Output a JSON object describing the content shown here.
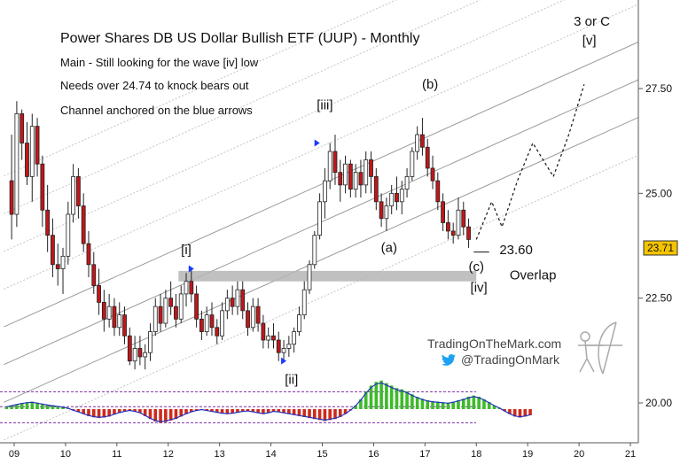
{
  "chart_data": {
    "type": "candlestick",
    "title": "Power Shares DB US Dollar Bullish ETF (UUP) - Monthly",
    "notes": [
      "Main - Still looking for the wave [iv] low",
      "Needs over 24.74 to knock bears out",
      "Channel anchored on the blue arrows"
    ],
    "last_price": "23.71",
    "y_ticks": [
      "27.50",
      "25.00",
      "22.50",
      "20.00"
    ],
    "y_tick_values": [
      27.5,
      25.0,
      22.5,
      20.0
    ],
    "x_ticks": [
      "09",
      "10",
      "11",
      "12",
      "13",
      "14",
      "15",
      "16",
      "17",
      "18",
      "19",
      "20",
      "21"
    ],
    "x_tick_values": [
      9,
      10,
      11,
      12,
      13,
      14,
      15,
      16,
      17,
      18,
      19,
      20,
      21
    ],
    "xlim": [
      8.8,
      21.2
    ],
    "ylim": [
      19.0,
      29.6
    ],
    "candles": [
      {
        "t": 8.95,
        "o": 25.3,
        "h": 26.4,
        "l": 23.9,
        "c": 24.5
      },
      {
        "t": 9.05,
        "o": 24.5,
        "h": 27.2,
        "l": 24.2,
        "c": 26.9
      },
      {
        "t": 9.15,
        "o": 26.9,
        "h": 27.0,
        "l": 25.8,
        "c": 26.2
      },
      {
        "t": 9.25,
        "o": 26.2,
        "h": 26.7,
        "l": 25.2,
        "c": 25.4
      },
      {
        "t": 9.35,
        "o": 25.4,
        "h": 26.9,
        "l": 24.8,
        "c": 26.6
      },
      {
        "t": 9.45,
        "o": 26.6,
        "h": 26.8,
        "l": 25.4,
        "c": 25.7
      },
      {
        "t": 9.55,
        "o": 25.7,
        "h": 25.9,
        "l": 24.2,
        "c": 24.6
      },
      {
        "t": 9.65,
        "o": 24.6,
        "h": 25.2,
        "l": 23.6,
        "c": 24.0
      },
      {
        "t": 9.75,
        "o": 24.0,
        "h": 24.4,
        "l": 23.0,
        "c": 23.3
      },
      {
        "t": 9.85,
        "o": 23.3,
        "h": 23.8,
        "l": 22.8,
        "c": 23.2
      },
      {
        "t": 9.95,
        "o": 23.2,
        "h": 23.7,
        "l": 22.6,
        "c": 23.5
      },
      {
        "t": 10.05,
        "o": 23.5,
        "h": 24.8,
        "l": 23.3,
        "c": 24.5
      },
      {
        "t": 10.15,
        "o": 24.5,
        "h": 25.7,
        "l": 24.3,
        "c": 25.4
      },
      {
        "t": 10.25,
        "o": 25.4,
        "h": 25.6,
        "l": 24.4,
        "c": 24.7
      },
      {
        "t": 10.35,
        "o": 24.7,
        "h": 25.0,
        "l": 23.6,
        "c": 23.8
      },
      {
        "t": 10.45,
        "o": 23.8,
        "h": 24.1,
        "l": 23.0,
        "c": 23.3
      },
      {
        "t": 10.55,
        "o": 23.3,
        "h": 23.6,
        "l": 22.6,
        "c": 22.8
      },
      {
        "t": 10.65,
        "o": 22.8,
        "h": 23.2,
        "l": 22.1,
        "c": 22.4
      },
      {
        "t": 10.75,
        "o": 22.4,
        "h": 22.7,
        "l": 21.7,
        "c": 22.0
      },
      {
        "t": 10.85,
        "o": 22.0,
        "h": 22.6,
        "l": 21.8,
        "c": 22.3
      },
      {
        "t": 10.95,
        "o": 22.3,
        "h": 22.5,
        "l": 21.6,
        "c": 21.8
      },
      {
        "t": 11.05,
        "o": 21.8,
        "h": 22.4,
        "l": 21.6,
        "c": 22.1
      },
      {
        "t": 11.15,
        "o": 22.1,
        "h": 22.3,
        "l": 21.4,
        "c": 21.6
      },
      {
        "t": 11.25,
        "o": 21.6,
        "h": 21.8,
        "l": 20.9,
        "c": 21.0
      },
      {
        "t": 11.35,
        "o": 21.0,
        "h": 21.6,
        "l": 20.8,
        "c": 21.3
      },
      {
        "t": 11.45,
        "o": 21.3,
        "h": 21.6,
        "l": 20.9,
        "c": 21.1
      },
      {
        "t": 11.55,
        "o": 21.1,
        "h": 21.4,
        "l": 20.8,
        "c": 21.2
      },
      {
        "t": 11.65,
        "o": 21.2,
        "h": 21.9,
        "l": 21.0,
        "c": 21.7
      },
      {
        "t": 11.75,
        "o": 21.7,
        "h": 22.5,
        "l": 21.6,
        "c": 22.3
      },
      {
        "t": 11.85,
        "o": 22.3,
        "h": 22.6,
        "l": 21.7,
        "c": 21.9
      },
      {
        "t": 11.95,
        "o": 21.9,
        "h": 22.7,
        "l": 21.8,
        "c": 22.5
      },
      {
        "t": 12.05,
        "o": 22.5,
        "h": 22.9,
        "l": 22.1,
        "c": 22.3
      },
      {
        "t": 12.15,
        "o": 22.3,
        "h": 22.6,
        "l": 21.8,
        "c": 22.0
      },
      {
        "t": 12.25,
        "o": 22.0,
        "h": 22.8,
        "l": 21.9,
        "c": 22.6
      },
      {
        "t": 12.35,
        "o": 22.6,
        "h": 23.1,
        "l": 22.3,
        "c": 22.9
      },
      {
        "t": 12.45,
        "o": 22.9,
        "h": 23.2,
        "l": 22.4,
        "c": 22.6
      },
      {
        "t": 12.55,
        "o": 22.6,
        "h": 22.8,
        "l": 21.8,
        "c": 22.0
      },
      {
        "t": 12.65,
        "o": 22.0,
        "h": 22.2,
        "l": 21.5,
        "c": 21.7
      },
      {
        "t": 12.75,
        "o": 21.7,
        "h": 22.3,
        "l": 21.6,
        "c": 22.1
      },
      {
        "t": 12.85,
        "o": 22.1,
        "h": 22.4,
        "l": 21.6,
        "c": 21.8
      },
      {
        "t": 12.95,
        "o": 21.8,
        "h": 22.0,
        "l": 21.4,
        "c": 21.6
      },
      {
        "t": 13.05,
        "o": 21.6,
        "h": 22.4,
        "l": 21.5,
        "c": 22.2
      },
      {
        "t": 13.15,
        "o": 22.2,
        "h": 22.7,
        "l": 22.0,
        "c": 22.5
      },
      {
        "t": 13.25,
        "o": 22.5,
        "h": 22.8,
        "l": 22.1,
        "c": 22.3
      },
      {
        "t": 13.35,
        "o": 22.3,
        "h": 22.9,
        "l": 22.1,
        "c": 22.7
      },
      {
        "t": 13.45,
        "o": 22.7,
        "h": 22.9,
        "l": 22.0,
        "c": 22.2
      },
      {
        "t": 13.55,
        "o": 22.2,
        "h": 22.4,
        "l": 21.6,
        "c": 21.8
      },
      {
        "t": 13.65,
        "o": 21.8,
        "h": 22.5,
        "l": 21.7,
        "c": 22.3
      },
      {
        "t": 13.75,
        "o": 22.3,
        "h": 22.5,
        "l": 21.7,
        "c": 21.9
      },
      {
        "t": 13.85,
        "o": 21.9,
        "h": 22.1,
        "l": 21.3,
        "c": 21.5
      },
      {
        "t": 13.95,
        "o": 21.5,
        "h": 21.8,
        "l": 21.3,
        "c": 21.6
      },
      {
        "t": 14.05,
        "o": 21.6,
        "h": 21.9,
        "l": 21.3,
        "c": 21.5
      },
      {
        "t": 14.15,
        "o": 21.5,
        "h": 21.7,
        "l": 21.0,
        "c": 21.2
      },
      {
        "t": 14.25,
        "o": 21.2,
        "h": 21.5,
        "l": 21.0,
        "c": 21.3
      },
      {
        "t": 14.35,
        "o": 21.3,
        "h": 21.6,
        "l": 21.1,
        "c": 21.4
      },
      {
        "t": 14.45,
        "o": 21.4,
        "h": 21.8,
        "l": 21.2,
        "c": 21.7
      },
      {
        "t": 14.55,
        "o": 21.7,
        "h": 22.3,
        "l": 21.6,
        "c": 22.1
      },
      {
        "t": 14.65,
        "o": 22.1,
        "h": 22.9,
        "l": 22.0,
        "c": 22.7
      },
      {
        "t": 14.75,
        "o": 22.7,
        "h": 23.4,
        "l": 22.6,
        "c": 23.3
      },
      {
        "t": 14.85,
        "o": 23.3,
        "h": 24.1,
        "l": 23.2,
        "c": 24.0
      },
      {
        "t": 14.95,
        "o": 24.0,
        "h": 25.0,
        "l": 23.9,
        "c": 24.8
      },
      {
        "t": 15.05,
        "o": 24.8,
        "h": 25.6,
        "l": 24.4,
        "c": 25.3
      },
      {
        "t": 15.15,
        "o": 25.3,
        "h": 26.2,
        "l": 25.1,
        "c": 26.0
      },
      {
        "t": 15.25,
        "o": 26.0,
        "h": 26.4,
        "l": 25.2,
        "c": 25.5
      },
      {
        "t": 15.35,
        "o": 25.5,
        "h": 25.8,
        "l": 24.8,
        "c": 25.2
      },
      {
        "t": 15.45,
        "o": 25.2,
        "h": 25.9,
        "l": 25.0,
        "c": 25.7
      },
      {
        "t": 15.55,
        "o": 25.7,
        "h": 25.8,
        "l": 24.9,
        "c": 25.1
      },
      {
        "t": 15.65,
        "o": 25.1,
        "h": 25.7,
        "l": 24.9,
        "c": 25.5
      },
      {
        "t": 15.75,
        "o": 25.5,
        "h": 25.8,
        "l": 24.9,
        "c": 25.2
      },
      {
        "t": 15.85,
        "o": 25.2,
        "h": 26.0,
        "l": 25.0,
        "c": 25.8
      },
      {
        "t": 15.95,
        "o": 25.8,
        "h": 26.0,
        "l": 25.0,
        "c": 25.4
      },
      {
        "t": 16.05,
        "o": 25.4,
        "h": 25.6,
        "l": 24.6,
        "c": 24.8
      },
      {
        "t": 16.15,
        "o": 24.8,
        "h": 25.0,
        "l": 24.2,
        "c": 24.4
      },
      {
        "t": 16.25,
        "o": 24.4,
        "h": 24.9,
        "l": 24.1,
        "c": 24.7
      },
      {
        "t": 16.35,
        "o": 24.7,
        "h": 25.2,
        "l": 24.5,
        "c": 25.0
      },
      {
        "t": 16.45,
        "o": 25.0,
        "h": 25.4,
        "l": 24.6,
        "c": 24.8
      },
      {
        "t": 16.55,
        "o": 24.8,
        "h": 25.3,
        "l": 24.5,
        "c": 25.1
      },
      {
        "t": 16.65,
        "o": 25.1,
        "h": 25.6,
        "l": 24.9,
        "c": 25.4
      },
      {
        "t": 16.75,
        "o": 25.4,
        "h": 26.1,
        "l": 25.3,
        "c": 26.0
      },
      {
        "t": 16.85,
        "o": 26.0,
        "h": 26.6,
        "l": 25.8,
        "c": 26.4
      },
      {
        "t": 16.95,
        "o": 26.4,
        "h": 26.8,
        "l": 25.9,
        "c": 26.1
      },
      {
        "t": 17.05,
        "o": 26.1,
        "h": 26.3,
        "l": 25.4,
        "c": 25.6
      },
      {
        "t": 17.15,
        "o": 25.6,
        "h": 25.9,
        "l": 25.1,
        "c": 25.3
      },
      {
        "t": 17.25,
        "o": 25.3,
        "h": 25.5,
        "l": 24.6,
        "c": 24.8
      },
      {
        "t": 17.35,
        "o": 24.8,
        "h": 25.0,
        "l": 24.1,
        "c": 24.3
      },
      {
        "t": 17.45,
        "o": 24.3,
        "h": 24.6,
        "l": 23.9,
        "c": 24.1
      },
      {
        "t": 17.55,
        "o": 24.1,
        "h": 24.3,
        "l": 23.8,
        "c": 24.0
      },
      {
        "t": 17.65,
        "o": 24.0,
        "h": 24.9,
        "l": 23.9,
        "c": 24.6
      },
      {
        "t": 17.75,
        "o": 24.6,
        "h": 24.8,
        "l": 24.0,
        "c": 24.2
      },
      {
        "t": 17.85,
        "o": 24.2,
        "h": 24.4,
        "l": 23.7,
        "c": 23.9
      }
    ],
    "overlap_zone": {
      "from": 22.9,
      "to": 23.15,
      "x_start": 12.2,
      "x_end": 18.0
    },
    "forecast_path": [
      [
        18.0,
        23.9
      ],
      [
        18.3,
        24.8
      ],
      [
        18.5,
        24.2
      ],
      [
        18.8,
        25.3
      ],
      [
        19.1,
        26.2
      ],
      [
        19.5,
        25.4
      ],
      [
        19.8,
        26.4
      ],
      [
        20.1,
        27.6
      ]
    ],
    "channel_slope_per_year": 0.55,
    "channel_lines": [
      {
        "anchor_x": 11.5,
        "anchor_y": 20.6,
        "style": "dashed"
      },
      {
        "anchor_x": 11.5,
        "anchor_y": 21.5,
        "style": "solid"
      },
      {
        "anchor_x": 11.5,
        "anchor_y": 22.4,
        "style": "solid"
      },
      {
        "anchor_x": 11.5,
        "anchor_y": 23.3,
        "style": "solid"
      },
      {
        "anchor_x": 11.5,
        "anchor_y": 24.2,
        "style": "dashed"
      },
      {
        "anchor_x": 11.5,
        "anchor_y": 25.1,
        "style": "dashed"
      },
      {
        "anchor_x": 11.5,
        "anchor_y": 26.0,
        "style": "dashed"
      },
      {
        "anchor_x": 11.5,
        "anchor_y": 26.9,
        "style": "dashed"
      }
    ],
    "wave_labels": [
      {
        "text": "[i]",
        "t": 12.35,
        "y": 23.55
      },
      {
        "text": "[ii]",
        "t": 14.4,
        "y": 20.45
      },
      {
        "text": "[iii]",
        "t": 15.05,
        "y": 27.0
      },
      {
        "text": "(a)",
        "t": 16.3,
        "y": 23.6
      },
      {
        "text": "(b)",
        "t": 17.1,
        "y": 27.5
      },
      {
        "text": "(c)",
        "t": 18.0,
        "y": 23.15
      },
      {
        "text": "[iv]",
        "t": 18.05,
        "y": 22.65
      },
      {
        "text": "23.60",
        "t": 18.45,
        "y": 23.55
      },
      {
        "text": "Overlap",
        "t": 18.65,
        "y": 22.95
      },
      {
        "text": "3 or C",
        "t": 20.25,
        "y": 29.0
      },
      {
        "text": "[v]",
        "t": 20.2,
        "y": 28.55
      }
    ],
    "blue_arrows": [
      [
        12.45,
        23.2
      ],
      [
        14.25,
        21.0
      ],
      [
        14.9,
        26.2
      ]
    ],
    "oscillator": {
      "type": "histogram",
      "x_start": 8.85,
      "x_step": 0.1,
      "values": [
        0.1,
        0.15,
        0.2,
        0.25,
        0.28,
        0.3,
        0.26,
        0.22,
        0.18,
        0.15,
        0.12,
        0.08,
        0.04,
        -0.05,
        -0.12,
        -0.2,
        -0.28,
        -0.33,
        -0.36,
        -0.34,
        -0.3,
        -0.22,
        -0.15,
        -0.1,
        -0.06,
        -0.1,
        -0.16,
        -0.28,
        -0.4,
        -0.5,
        -0.55,
        -0.52,
        -0.46,
        -0.4,
        -0.3,
        -0.2,
        -0.12,
        -0.06,
        -0.02,
        -0.06,
        -0.1,
        -0.14,
        -0.18,
        -0.2,
        -0.18,
        -0.14,
        -0.1,
        -0.08,
        -0.12,
        -0.16,
        -0.2,
        -0.16,
        -0.1,
        -0.12,
        -0.16,
        -0.2,
        -0.24,
        -0.28,
        -0.32,
        -0.36,
        -0.4,
        -0.44,
        -0.48,
        -0.44,
        -0.4,
        -0.32,
        -0.2,
        -0.05,
        0.15,
        0.4,
        0.7,
        0.95,
        1.1,
        1.15,
        1.05,
        0.95,
        0.85,
        0.8,
        0.72,
        0.6,
        0.5,
        0.42,
        0.36,
        0.32,
        0.3,
        0.28,
        0.26,
        0.3,
        0.36,
        0.42,
        0.5,
        0.55,
        0.5,
        0.4,
        0.28,
        0.15,
        0.05,
        -0.08,
        -0.2,
        -0.3,
        -0.34,
        -0.3,
        -0.25
      ],
      "threshold_lines": [
        0.7,
        0.1,
        -0.55
      ]
    }
  },
  "labels": {
    "title": "Power Shares DB US Dollar Bullish ETF (UUP) - Monthly",
    "note1": "Main - Still looking for the wave [iv] low",
    "note2": "Needs over 24.74 to knock bears out",
    "note3": "Channel anchored on the blue arrows",
    "price_tag": "23.71",
    "brand_site": "TradingOnTheMark.com",
    "brand_twitter": "@TradingOnMark"
  },
  "colors": {
    "up_fill": "#ffffff",
    "down_fill": "#c0161b",
    "candle_edge": "#222222",
    "price_tag_bg": "#f5c400",
    "overlap": "#b5b5b5",
    "arrow": "#1a3cff",
    "osc_pos": "#3dbb2a",
    "osc_neg": "#cc2a1e",
    "osc_line": "#2233bb",
    "osc_threshold": "#7b2aa8",
    "twitter": "#1da1f2"
  },
  "icons": [
    "twitter-bird-icon",
    "archer-logo-icon"
  ]
}
